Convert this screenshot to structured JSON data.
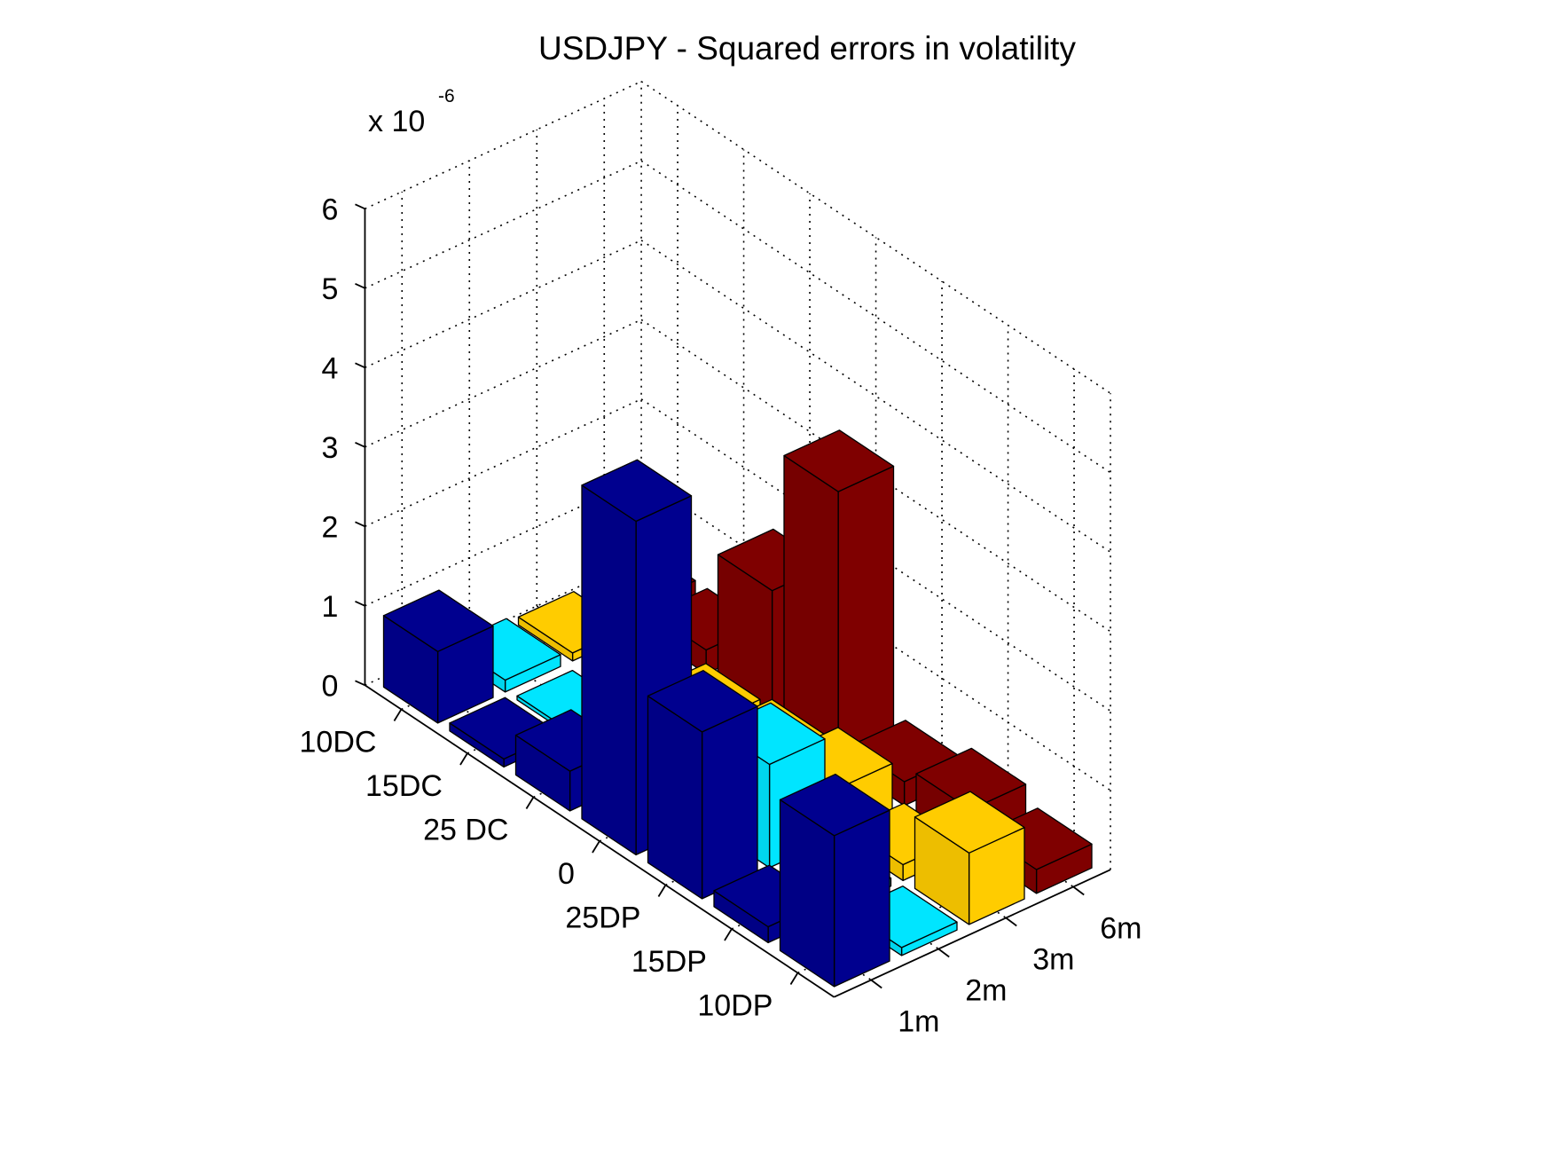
{
  "chart_data": {
    "type": "bar3d",
    "title": "USDJPY - Squared errors in volatility",
    "z_multiplier_label": "x 10",
    "z_multiplier_exponent": "-6",
    "z_ticks": [
      "0",
      "1",
      "2",
      "3",
      "4",
      "5",
      "6"
    ],
    "zlim": [
      0,
      6
    ],
    "grid": true,
    "delta_labels": [
      "10DC",
      "15DC",
      "25 DC",
      "0",
      "25DP",
      "15DP",
      "10DP"
    ],
    "maturity_labels": [
      "1m",
      "2m",
      "3m",
      "6m"
    ],
    "series": [
      {
        "name": "1m",
        "color": "#00008f",
        "values": [
          0.9,
          0.1,
          0.5,
          4.2,
          2.1,
          0.2,
          1.9
        ]
      },
      {
        "name": "2m",
        "color": "#00e5ff",
        "values": [
          0.15,
          0.05,
          0.1,
          0.3,
          1.3,
          0.1,
          0.1
        ]
      },
      {
        "name": "3m",
        "color": "#ffcc00",
        "values": [
          0.1,
          0.1,
          0.3,
          0.4,
          0.6,
          0.2,
          0.9
        ]
      },
      {
        "name": "6m",
        "color": "#7f0000",
        "values": [
          0.3,
          0.3,
          1.6,
          3.4,
          0.3,
          0.5,
          0.3
        ]
      }
    ]
  }
}
